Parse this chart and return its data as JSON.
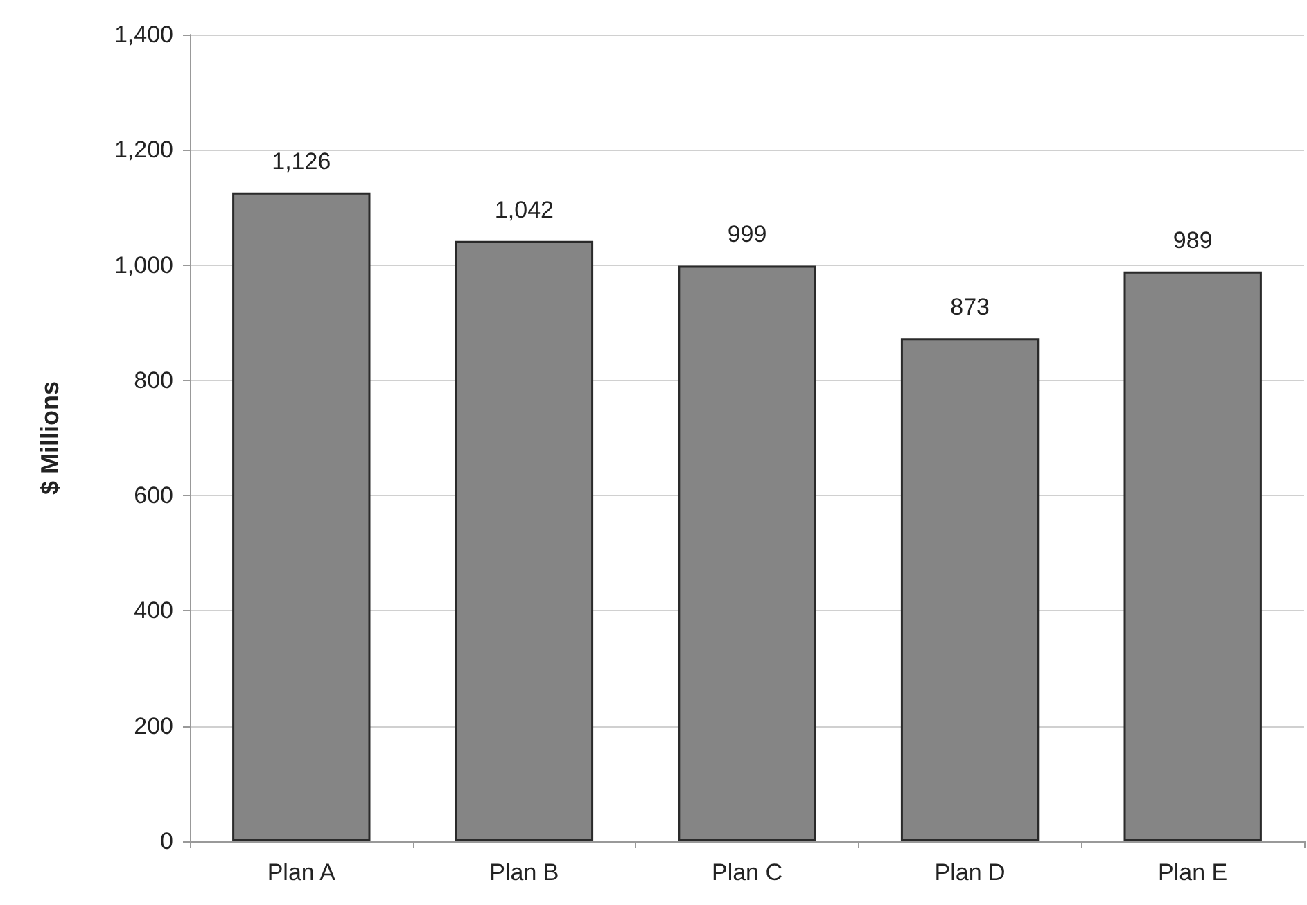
{
  "chart_data": {
    "type": "bar",
    "ylabel": "$ Millions",
    "categories": [
      "Plan A",
      "Plan B",
      "Plan C",
      "Plan D",
      "Plan E"
    ],
    "values": [
      1126,
      1042,
      999,
      873,
      989
    ],
    "value_labels": [
      "1,126",
      "1,042",
      "999",
      "873",
      "989"
    ],
    "color": "#858585",
    "ylim": [
      0,
      1400
    ],
    "yticks": [
      0,
      200,
      400,
      600,
      800,
      {
        "value": 1000,
        "label": "1,000"
      },
      {
        "value": 1200,
        "label": "1,200"
      },
      {
        "value": 1400,
        "label": "1,400"
      }
    ],
    "grid": "y"
  }
}
